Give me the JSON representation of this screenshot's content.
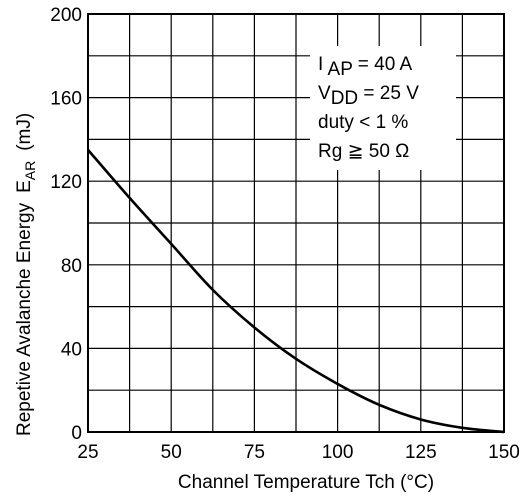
{
  "chart_data": {
    "type": "line",
    "title": "",
    "xlabel": "Channel Temperature   Tch  (°C)",
    "ylabel_text": "Repetive Avalanche Energy",
    "ylabel_symbol": "E",
    "ylabel_symbol_sub": "AR",
    "ylabel_unit": "(mJ)",
    "xlim": [
      25,
      150
    ],
    "ylim": [
      0,
      200
    ],
    "x_ticks": [
      25,
      50,
      75,
      100,
      125,
      150
    ],
    "y_ticks": [
      0,
      40,
      80,
      120,
      160,
      200
    ],
    "x_minor_step": 12.5,
    "y_minor_step": 20,
    "grid": true,
    "legend": "none",
    "series": [
      {
        "x": [
          25,
          37.5,
          50,
          62.5,
          75,
          87.5,
          100,
          112.5,
          125,
          137.5,
          150
        ],
        "y": [
          135,
          112,
          90,
          68,
          50,
          35,
          23,
          13,
          6,
          2,
          0
        ]
      }
    ],
    "annotations": [
      {
        "segments": [
          {
            "text": "I "
          },
          {
            "text": "AP",
            "sub": true
          },
          {
            "text": " = 40 A"
          }
        ]
      },
      {
        "segments": [
          {
            "text": "V"
          },
          {
            "text": "DD",
            "sub": true
          },
          {
            "text": " = 25 V"
          }
        ]
      },
      {
        "segments": [
          {
            "text": "duty < 1 %"
          }
        ]
      },
      {
        "segments": [
          {
            "text": "Rg ≧ 50 Ω"
          }
        ]
      }
    ]
  }
}
